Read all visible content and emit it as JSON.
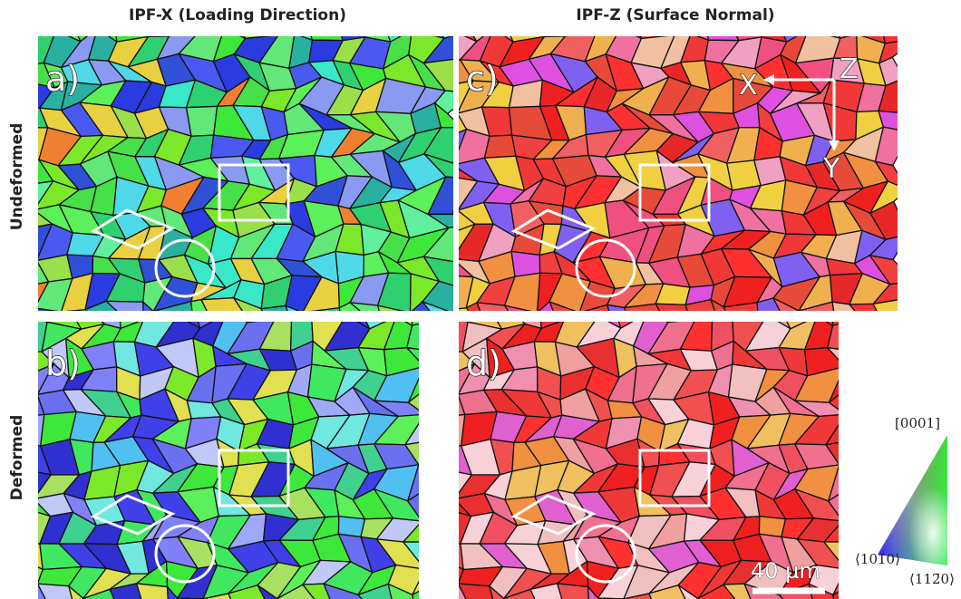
{
  "header": {
    "columns": [
      "IPF-X (Loading Direction)",
      "IPF-Z (Surface Normal)"
    ]
  },
  "rows": [
    "Undeformed",
    "Deformed"
  ],
  "panels": [
    {
      "label": "a)"
    },
    {
      "label": "b)"
    },
    {
      "label": "c)"
    },
    {
      "label": "d)"
    }
  ],
  "axes": {
    "x": "X",
    "y": "Y",
    "z": "Z"
  },
  "scale_bar": "40 µm",
  "legend": {
    "top": "[0001]",
    "left": "⟨101̄0⟩",
    "right": "⟨112̄0⟩"
  }
}
